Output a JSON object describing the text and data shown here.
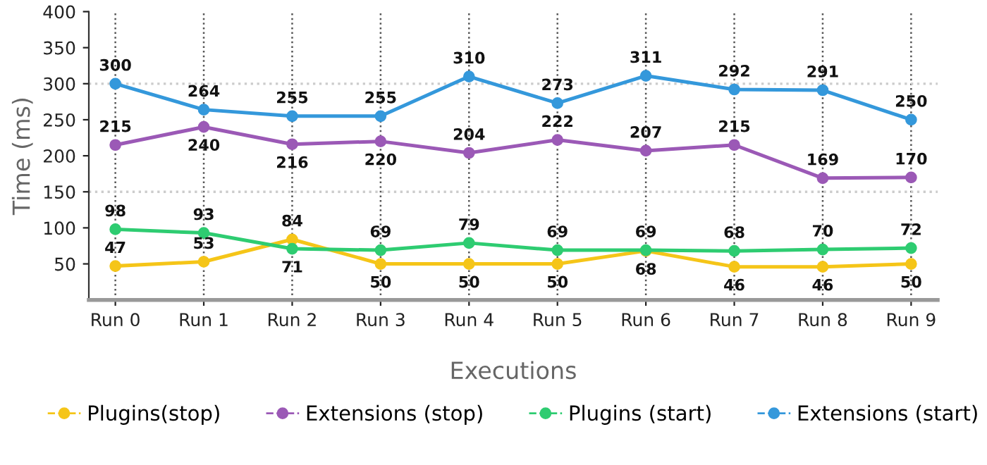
{
  "chart_data": {
    "type": "line",
    "xlabel": "Executions",
    "ylabel": "Time (ms)",
    "categories": [
      "Run 0",
      "Run 1",
      "Run 2",
      "Run 3",
      "Run 4",
      "Run 5",
      "Run 6",
      "Run 7",
      "Run 8",
      "Run 9"
    ],
    "series": [
      {
        "name": "Plugins(stop)",
        "color": "#f5c518",
        "values": [
          47,
          53,
          84,
          50,
          50,
          50,
          68,
          46,
          46,
          50
        ]
      },
      {
        "name": "Extensions (stop)",
        "color": "#9b59b6",
        "values": [
          215,
          240,
          216,
          220,
          204,
          222,
          207,
          215,
          169,
          170
        ]
      },
      {
        "name": "Plugins (start)",
        "color": "#2ecc71",
        "values": [
          98,
          93,
          71,
          69,
          79,
          69,
          69,
          68,
          70,
          72
        ]
      },
      {
        "name": "Extensions (start)",
        "color": "#3498db",
        "values": [
          300,
          264,
          255,
          255,
          310,
          273,
          311,
          292,
          291,
          250
        ]
      }
    ],
    "ylim": [
      0,
      400
    ],
    "yticks": [
      50,
      100,
      150,
      200,
      250,
      300,
      350,
      400
    ],
    "grid": "x",
    "legend": "bottom",
    "marker": "circle",
    "line_style": "solid",
    "data_labels": true,
    "ref_lines": [
      {
        "axis": "y",
        "value": 150,
        "color": "#cccccc",
        "line_style": "dotted"
      },
      {
        "axis": "y",
        "value": 300,
        "color": "#cccccc",
        "line_style": "dotted"
      }
    ]
  }
}
